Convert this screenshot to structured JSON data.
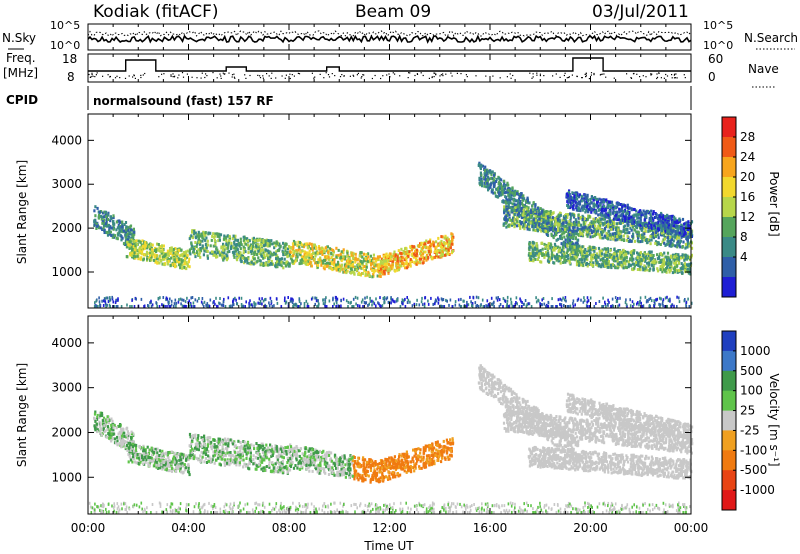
{
  "header": {
    "station": "Kodiak (fitACF)",
    "beam": "Beam 09",
    "date": "03/Jul/2011"
  },
  "top_panels": {
    "nsky_label": "N.Sky",
    "nsky_scale": [
      "10^5",
      "10^0"
    ],
    "nsearch_label": "N.Search",
    "nsearch_scale": [
      "10^5",
      "10^0"
    ],
    "freq_label": "Freq.",
    "freq_unit": "[MHz]",
    "freq_ticks": [
      "18",
      "8"
    ],
    "nave_label": "Nave",
    "nave_ticks": [
      "60",
      "0"
    ],
    "cpid_label": "CPID",
    "cpid_text": "normalsound (fast) 157 RF"
  },
  "chart_data": [
    {
      "type": "heatmap",
      "name": "power",
      "ylabel": "Slant Range [km]",
      "xlabel": "",
      "y_ticks": [
        "4000",
        "3000",
        "2000",
        "1000"
      ],
      "y_tick_values": [
        4000,
        3000,
        2000,
        1000
      ],
      "ylim": [
        180,
        4600
      ],
      "xlim": [
        0,
        24
      ],
      "colorbar_label": "Power [dB]",
      "colorbar_ticks": [
        "28",
        "24",
        "20",
        "16",
        "12",
        "8",
        "4"
      ],
      "colorbar_colors": [
        "#e8221c",
        "#f05a16",
        "#f7a51d",
        "#f2d82e",
        "#b7d64a",
        "#55a55c",
        "#3a8a86",
        "#2f5fa8",
        "#1f1fd4"
      ]
    },
    {
      "type": "heatmap",
      "name": "velocity",
      "ylabel": "Slant Range [km]",
      "xlabel": "Time UT",
      "y_ticks": [
        "4000",
        "3000",
        "2000",
        "1000"
      ],
      "y_tick_values": [
        4000,
        3000,
        2000,
        1000
      ],
      "ylim": [
        180,
        4600
      ],
      "xlim": [
        0,
        24
      ],
      "x_ticks": [
        "00:00",
        "04:00",
        "08:00",
        "12:00",
        "16:00",
        "20:00",
        "00:00"
      ],
      "x_tick_values": [
        0,
        4,
        8,
        12,
        16,
        20,
        24
      ],
      "colorbar_label": "Velocity [m s⁻¹]",
      "colorbar_ticks": [
        "1000",
        "500",
        "100",
        "25",
        "-25",
        "-100",
        "-500",
        "-1000"
      ],
      "colorbar_colors": [
        "#1f3fbf",
        "#3c78c8",
        "#3f9a4a",
        "#5fc44a",
        "#c8c8c8",
        "#f0a020",
        "#f07a10",
        "#e84414",
        "#e01818"
      ]
    }
  ]
}
